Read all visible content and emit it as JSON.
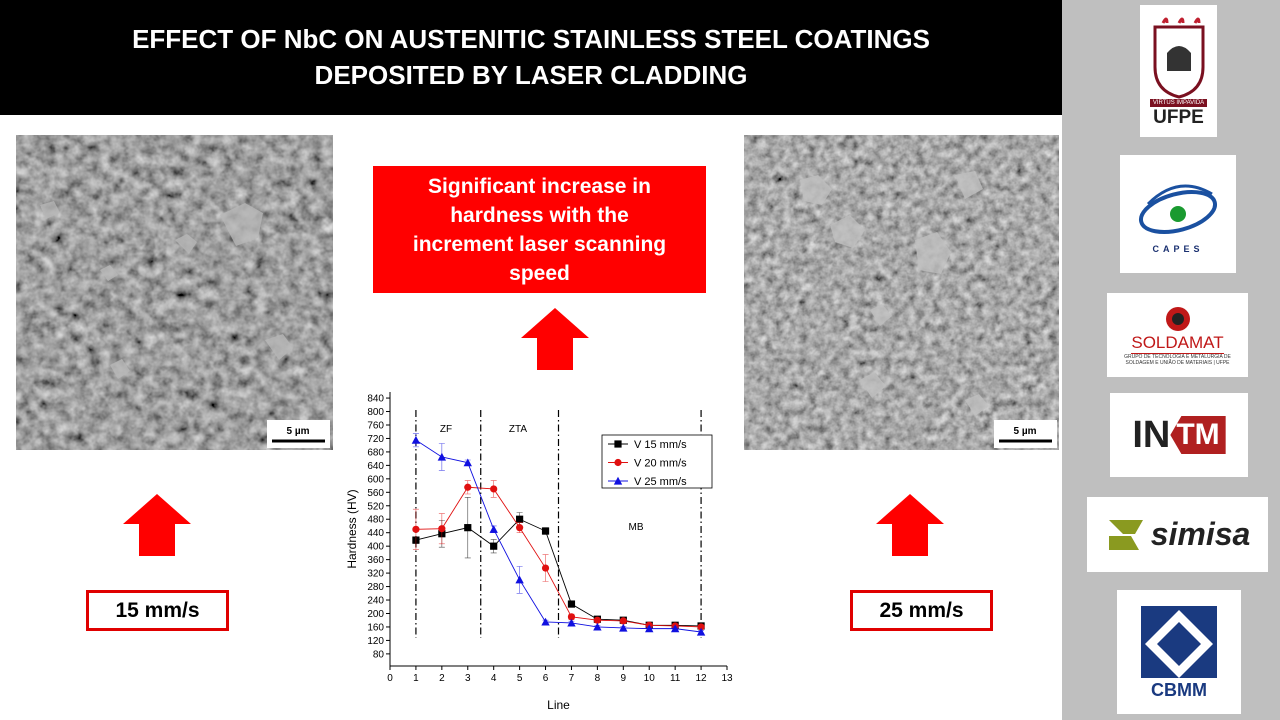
{
  "header": {
    "title_lines": [
      "EFFECT OF NbC ON AUSTENITIC STAINLESS STEEL COATINGS",
      "DEPOSITED BY LASER CLADDING"
    ]
  },
  "left_image": {
    "scale_bar": "5 µm",
    "label": "15 mm/s"
  },
  "right_image": {
    "scale_bar": "5 µm",
    "label": "25 mm/s"
  },
  "highlight": "Significant increase in hardness with the increment laser scanning speed",
  "logos": {
    "ufpe": {
      "motto": "VIRTUS IMPAVIDA",
      "name": "UFPE"
    },
    "capes": {
      "name": "CAPES"
    },
    "soldamat": {
      "name": "SOLDAMAT",
      "subtitle": "GRUPO DE TECNOLOGIA E METALURGIA DE SOLDAGEM E UNIÃO DE MATERIAIS | UFPE"
    },
    "intm": {
      "left": "IN",
      "right": "TM"
    },
    "simisa": {
      "name": "simisa"
    },
    "cbmm": {
      "name": "CBMM"
    }
  },
  "chart_data": {
    "type": "line",
    "x_label": "Line",
    "y_label": "Hardness (HV)",
    "x": [
      1,
      2,
      3,
      4,
      5,
      6,
      7,
      8,
      9,
      10,
      11,
      12
    ],
    "series": [
      {
        "name": "V 15 mm/s",
        "color": "#000000",
        "marker": "square",
        "values": [
          418,
          437,
          455,
          400,
          480,
          445,
          228,
          183,
          180,
          165,
          165,
          163
        ],
        "errors": [
          10,
          40,
          90,
          20,
          20,
          10,
          8,
          5,
          5,
          5,
          5,
          5
        ]
      },
      {
        "name": "V 20 mm/s",
        "color": "#e01010",
        "marker": "circle",
        "values": [
          450,
          452,
          575,
          570,
          455,
          335,
          190,
          180,
          178,
          165,
          163,
          160
        ],
        "errors": [
          60,
          45,
          20,
          25,
          15,
          40,
          8,
          5,
          5,
          5,
          5,
          5
        ]
      },
      {
        "name": "V 25 mm/s",
        "color": "#1010e0",
        "marker": "triangle",
        "values": [
          715,
          665,
          648,
          450,
          300,
          175,
          172,
          160,
          157,
          155,
          155,
          145
        ],
        "errors": [
          20,
          40,
          8,
          10,
          40,
          5,
          5,
          5,
          5,
          5,
          5,
          5
        ]
      }
    ],
    "xlim": [
      0,
      13
    ],
    "xticks": [
      0,
      1,
      2,
      3,
      4,
      5,
      6,
      7,
      8,
      9,
      10,
      11,
      12,
      13
    ],
    "ylim": [
      44,
      858
    ],
    "yticks": [
      80,
      120,
      160,
      200,
      240,
      280,
      320,
      360,
      400,
      440,
      480,
      520,
      560,
      600,
      640,
      680,
      720,
      760,
      800,
      840
    ],
    "vlines": [
      1,
      3.5,
      6.5,
      12
    ],
    "annotations": [
      "ZF",
      "ZTA",
      "MB"
    ],
    "legend": "upper right"
  }
}
